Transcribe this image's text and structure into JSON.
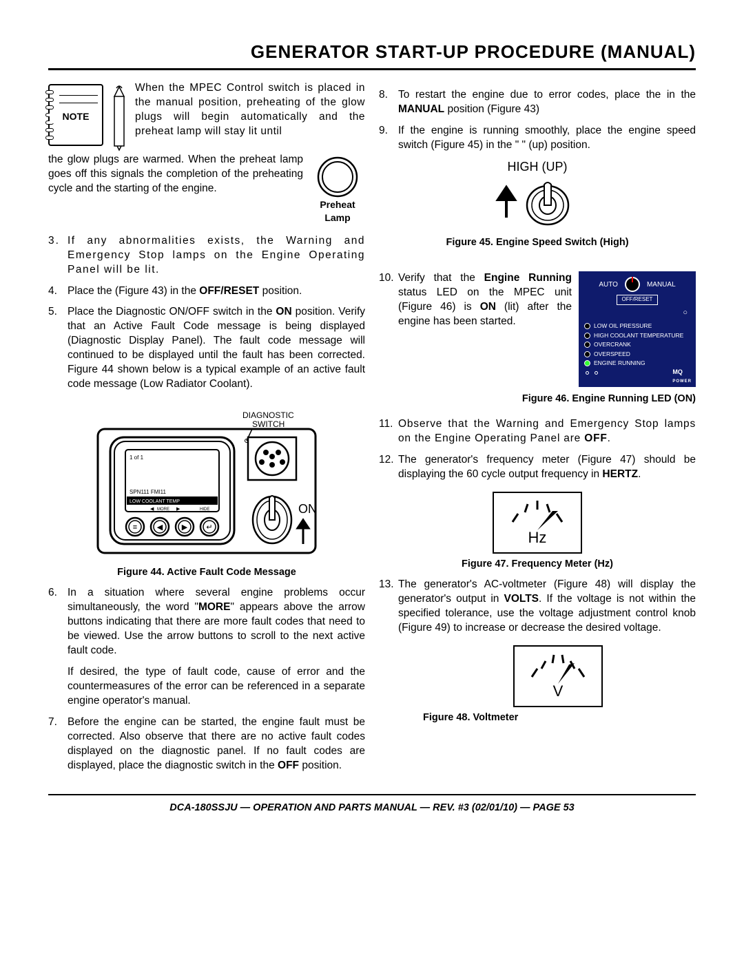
{
  "title": "GENERATOR START-UP PROCEDURE (MANUAL)",
  "note_label": "NOTE",
  "note_text_top": "When the MPEC Control switch is placed in the manual position, preheating of the glow plugs will begin automatically and the preheat lamp will stay lit until",
  "note_text_cont": "the glow plugs are warmed. When the preheat lamp goes off this signals the completion of the preheating cycle and the starting of the engine.",
  "preheat_caption": "Preheat Lamp",
  "items_left": [
    {
      "n": "3.",
      "t": "If any abnormalities exists, the Warning and Emergency Stop lamps on the Engine Operating Panel will be lit."
    },
    {
      "n": "4.",
      "t": "Place the                                        (Figure 43) in the <b>OFF/RESET</b> position."
    },
    {
      "n": "5.",
      "t": "Place the Diagnostic ON/OFF switch in the <b>ON</b> position. Verify that an Active Fault Code message is being displayed (Diagnostic Display Panel). The fault code message will continued to be displayed until the fault has been corrected. Figure 44 shown below is a typical example of an active fault code message (Low Radiator Coolant)."
    }
  ],
  "fig44_caption": "Figure 44. Active Fault Code Message",
  "fig44_labels": {
    "diag": "DIAGNOSTIC",
    "switch": "SWITCH",
    "on": "ON",
    "more": "MORE",
    "hide": "HIDE",
    "code": "SPN111 FMI11",
    "code2": "LOW COOLANT TEMP"
  },
  "items_left2": [
    {
      "n": "6.",
      "t": "In a situation where several engine problems occur simultaneously, the word \"<b>MORE</b>\" appears above the arrow buttons indicating that there are more fault codes that need to be viewed. Use the arrow buttons to scroll to the next active fault code."
    }
  ],
  "sub6": "If desired, the type of fault code, cause of error and the countermeasures of the error can be referenced in a separate engine operator's manual.",
  "items_left3": [
    {
      "n": "7.",
      "t": "Before the engine can be started, the engine fault must be corrected. Also observe that there are no active fault codes displayed on the diagnostic panel. If no fault codes are displayed, place the diagnostic switch in the <b>OFF</b> position."
    }
  ],
  "items_right": [
    {
      "n": "8.",
      "t": "To restart the engine due to error codes, place the                  in the <b>MANUAL</b> position (Figure 43)"
    },
    {
      "n": "9.",
      "t": "If the engine is running smoothly, place the engine speed switch (Figure 45) in the \"        \" (up) position."
    }
  ],
  "high_up": "HIGH (UP)",
  "fig45_caption": "Figure 45. Engine Speed Switch (High)",
  "item10": {
    "n": "10.",
    "t": "Verify that the <b>Engine Running</b> status LED on the MPEC unit (Figure 46) is <b>ON</b> (lit) after the engine has been started."
  },
  "mpec": {
    "auto": "AUTO",
    "manual": "MANUAL",
    "off": "OFF/RESET",
    "items": [
      "LOW OIL PRESSURE",
      "HIGH COOLANT TEMPERATURE",
      "OVERCRANK",
      "OVERSPEED",
      "ENGINE RUNNING"
    ],
    "brand": "MQ",
    "brand2": "POWER"
  },
  "fig46_caption": "Figure 46. Engine Running LED (ON)",
  "items_right2": [
    {
      "n": "11.",
      "t": "Observe that the Warning and Emergency Stop lamps on the Engine Operating Panel are <b>OFF</b>."
    },
    {
      "n": "12.",
      "t": "The generator's frequency meter (Figure 47) should be displaying the 60 cycle output frequency in <b>HERTZ</b>."
    }
  ],
  "hz_unit": "Hz",
  "fig47_caption": "Figure 47. Frequency Meter (Hz)",
  "items_right3": [
    {
      "n": "13.",
      "t": "The generator's AC-voltmeter (Figure 48) will display the generator's output in <b>VOLTS</b>. If the voltage is not within the specified tolerance, use the voltage adjustment control knob (Figure 49) to increase or decrease the desired voltage."
    }
  ],
  "v_unit": "V",
  "fig48_caption": "Figure 48. Voltmeter",
  "footer": "DCA-180SSJU — OPERATION AND PARTS MANUAL — REV. #3 (02/01/10) — PAGE 53"
}
